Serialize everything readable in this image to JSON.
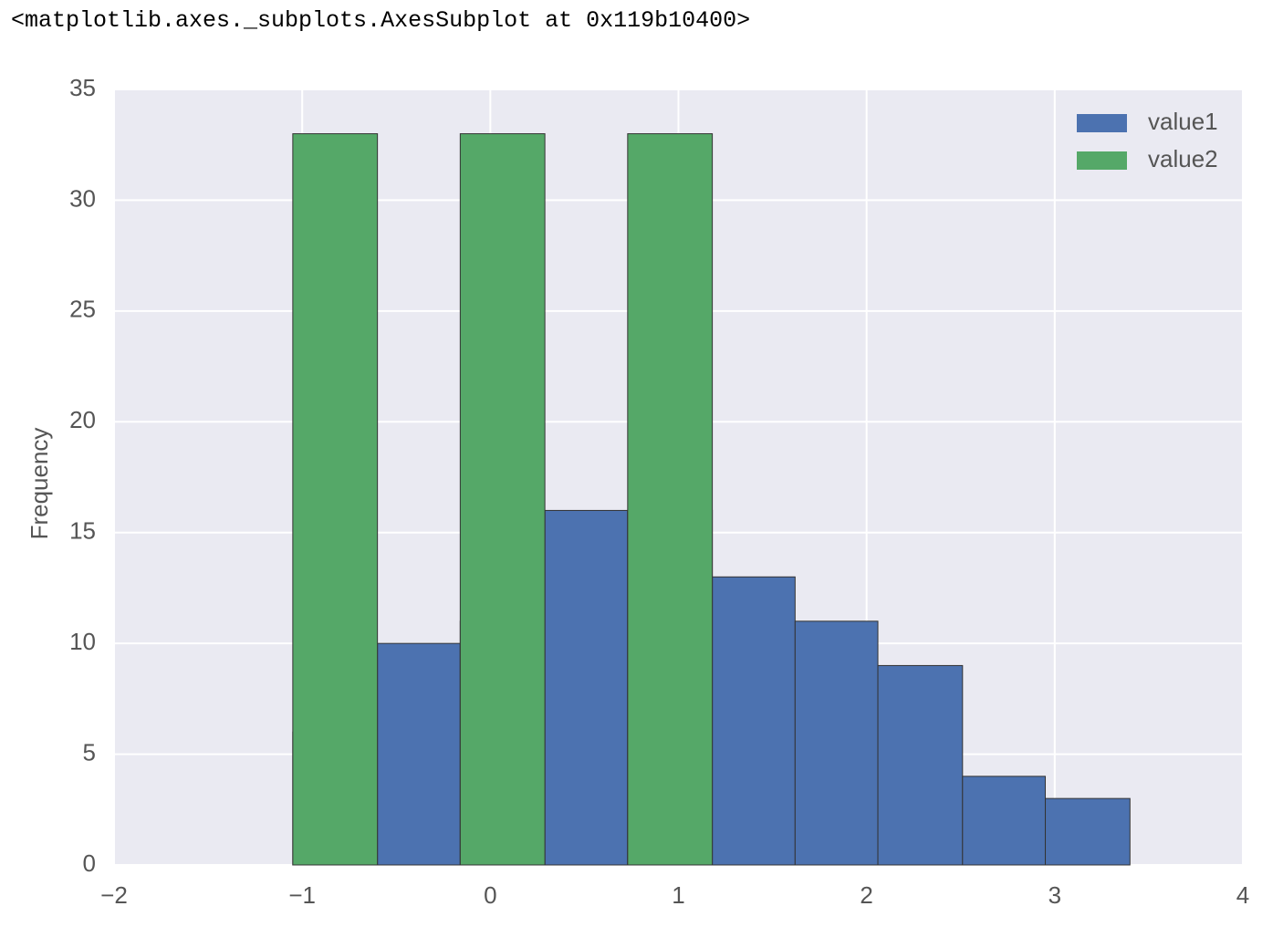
{
  "output_text": "<matplotlib.axes._subplots.AxesSubplot at 0x119b10400>",
  "chart_data": {
    "type": "histogram",
    "bins": [
      -1.05,
      -0.6,
      -0.16,
      0.29,
      0.73,
      1.18,
      1.62,
      2.06,
      2.51,
      2.95,
      3.4
    ],
    "series": [
      {
        "name": "value1",
        "color": "#4c72b0",
        "values": [
          6,
          10,
          11,
          16,
          16,
          13,
          11,
          9,
          4,
          3
        ]
      },
      {
        "name": "value2",
        "color": "#55a868",
        "values": [
          33,
          0,
          33,
          0,
          33,
          0,
          0,
          0,
          0,
          0
        ]
      }
    ],
    "y_label": "Frequency",
    "xlim": [
      -2,
      4
    ],
    "xticks": [
      {
        "value": -2,
        "label": "−2"
      },
      {
        "value": -1,
        "label": "−1"
      },
      0,
      1,
      2,
      3,
      4
    ],
    "ylim": [
      0,
      35
    ],
    "yticks": [
      0,
      5,
      10,
      15,
      20,
      25,
      30,
      35
    ],
    "grid": true,
    "legend": "upper-right"
  }
}
